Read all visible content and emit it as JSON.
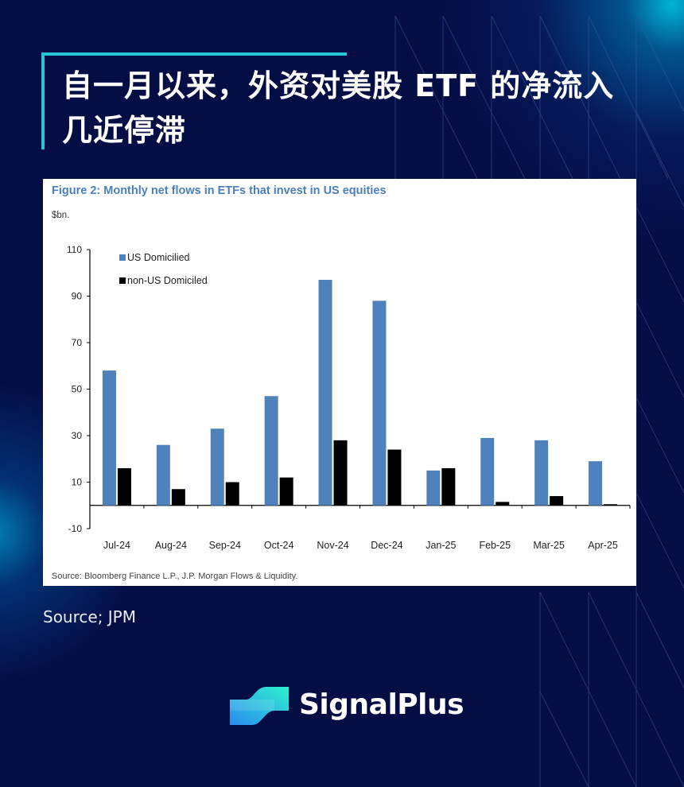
{
  "header": {
    "title": "自一月以来，外资对美股 ETF 的净流入几近停滞"
  },
  "figure": {
    "title": "Figure 2: Monthly net flows in ETFs that invest in US equities",
    "unit": "$bn.",
    "source": "Source: Bloomberg Finance L.P., J.P. Morgan Flows & Liquidity."
  },
  "footer": {
    "source": "Source; JPM",
    "brand": "SignalPlus"
  },
  "colors": {
    "background": "#050d45",
    "accent": "#24c6d6",
    "us_domiciled": "#4f81bd",
    "non_us_domiciled": "#000000",
    "figure_title": "#4a7fbf"
  },
  "chart_data": {
    "type": "bar",
    "title": "Figure 2: Monthly net flows in ETFs that invest in US equities",
    "xlabel": "",
    "ylabel": "$bn.",
    "ylim": [
      -10,
      110
    ],
    "yticks": [
      -10,
      10,
      30,
      50,
      70,
      90,
      110
    ],
    "grid": false,
    "legend_position": "top-left",
    "categories": [
      "Jul-24",
      "Aug-24",
      "Sep-24",
      "Oct-24",
      "Nov-24",
      "Dec-24",
      "Jan-25",
      "Feb-25",
      "Mar-25",
      "Apr-25"
    ],
    "series": [
      {
        "name": "US Domicilied",
        "color": "#4f81bd",
        "values": [
          58,
          26,
          33,
          47,
          97,
          88,
          15,
          29,
          28,
          19
        ]
      },
      {
        "name": "non-US Domiciled",
        "color": "#000000",
        "values": [
          16,
          7,
          10,
          12,
          28,
          24,
          16,
          1.5,
          4,
          0.5
        ]
      }
    ],
    "source": "Source: Bloomberg Finance L.P., J.P. Morgan Flows & Liquidity."
  }
}
